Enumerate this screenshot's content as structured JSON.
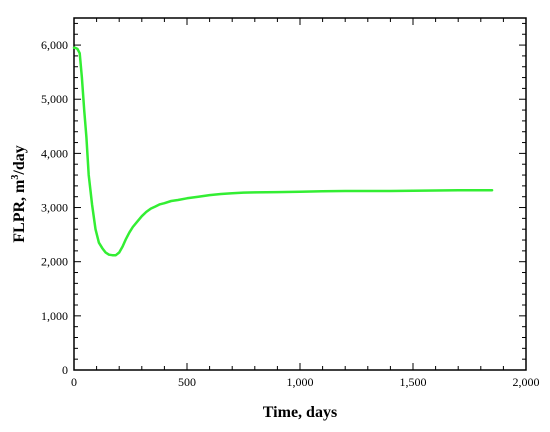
{
  "chart_data": {
    "type": "line",
    "xlabel": "Time, days",
    "ylabel_main": "FLPR, m",
    "ylabel_sup": "3",
    "ylabel_tail": "/day",
    "xlim": [
      0,
      2000
    ],
    "ylim": [
      0,
      6500
    ],
    "x_ticks": [
      0,
      500,
      1000,
      1500,
      2000
    ],
    "x_tick_labels": [
      "0",
      "500",
      "1,000",
      "1,500",
      "2,000"
    ],
    "y_ticks": [
      0,
      1000,
      2000,
      3000,
      4000,
      5000,
      6000
    ],
    "y_tick_labels": [
      "0",
      "1,000",
      "2,000",
      "3,000",
      "4,000",
      "5,000",
      "6,000"
    ],
    "grid": false,
    "line_color": "#33ee33",
    "series": [
      {
        "x": [
          0,
          5,
          15,
          25,
          35,
          45,
          55,
          65,
          80,
          95,
          110,
          125,
          140,
          155,
          170,
          185,
          200,
          215,
          230,
          245,
          260,
          280,
          300,
          320,
          340,
          360,
          380,
          400,
          430,
          460,
          500,
          550,
          600,
          650,
          700,
          750,
          800,
          900,
          1000,
          1100,
          1200,
          1300,
          1400,
          1500,
          1600,
          1700,
          1850
        ],
        "y": [
          5950,
          5950,
          5930,
          5850,
          5400,
          4800,
          4300,
          3600,
          3050,
          2600,
          2350,
          2250,
          2170,
          2130,
          2120,
          2120,
          2170,
          2280,
          2420,
          2540,
          2640,
          2740,
          2840,
          2920,
          2980,
          3020,
          3060,
          3080,
          3120,
          3140,
          3170,
          3200,
          3230,
          3250,
          3265,
          3275,
          3280,
          3285,
          3290,
          3300,
          3305,
          3305,
          3305,
          3310,
          3315,
          3318,
          3320
        ]
      }
    ]
  }
}
